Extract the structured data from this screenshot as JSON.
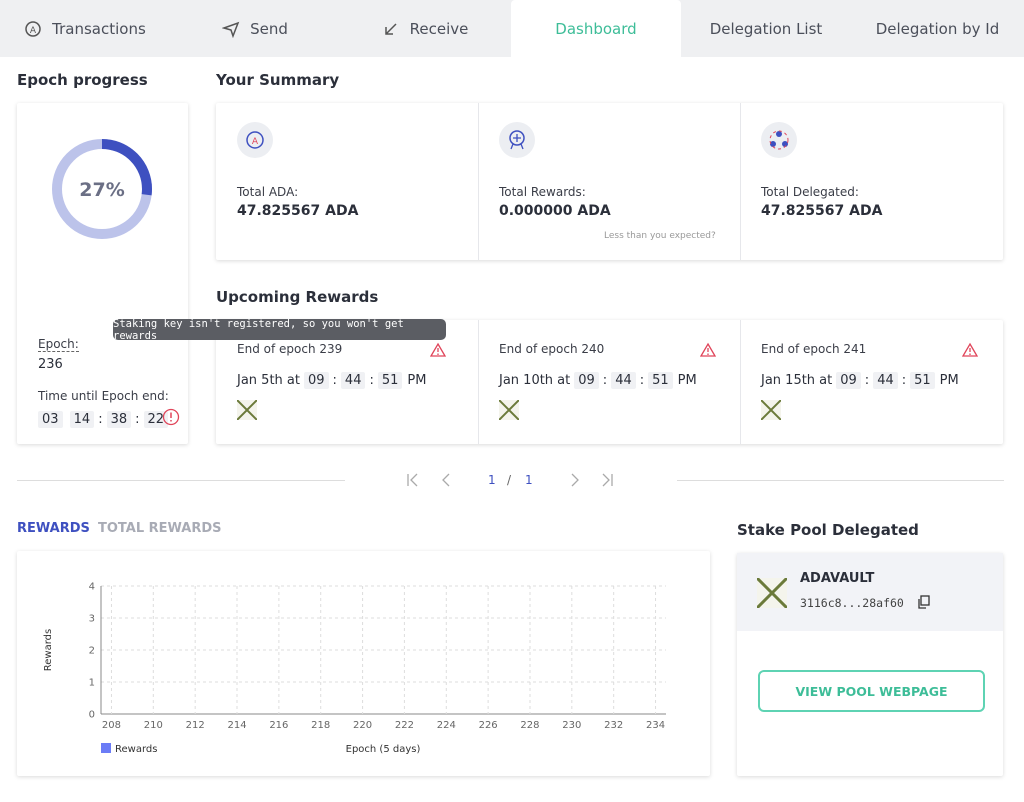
{
  "tabs": [
    "Transactions",
    "Send",
    "Receive",
    "Dashboard",
    "Delegation List",
    "Delegation by Id"
  ],
  "epoch_progress": {
    "title": "Epoch progress",
    "percent": 27,
    "percent_label": "27%",
    "epoch_label": "Epoch:",
    "epoch": "236",
    "time_label": "Time until Epoch end:",
    "time": [
      "03",
      "14",
      "38",
      "22"
    ],
    "time_separator": ":"
  },
  "tooltip": "Staking key isn't registered, so you won't get rewards",
  "summary": {
    "title": "Your Summary",
    "items": [
      {
        "label": "Total ADA:",
        "value": "47.825567 ADA"
      },
      {
        "label": "Total Rewards:",
        "value": "0.000000 ADA"
      },
      {
        "label": "Total Delegated:",
        "value": "47.825567 ADA"
      }
    ],
    "note": "Less than you expected?"
  },
  "upcoming": {
    "title": "Upcoming Rewards",
    "items": [
      {
        "epoch": "End of epoch 239",
        "date": "Jan 5th at",
        "time": [
          "09",
          "44",
          "51"
        ],
        "period": "PM"
      },
      {
        "epoch": "End of epoch 240",
        "date": "Jan 10th at",
        "time": [
          "09",
          "44",
          "51"
        ],
        "period": "PM"
      },
      {
        "epoch": "End of epoch 241",
        "date": "Jan 15th at",
        "time": [
          "09",
          "44",
          "51"
        ],
        "period": "PM"
      }
    ],
    "time_separator": ":"
  },
  "pagination": {
    "current": "1",
    "separator": "/",
    "total": "1"
  },
  "rewards_chart": {
    "tabs": [
      "REWARDS",
      "TOTAL REWARDS"
    ],
    "ylabel": "Rewards",
    "xlabel": "Epoch (5 days)",
    "legend": "Rewards",
    "color": "#6b7cf6",
    "ylim": [
      0,
      4
    ],
    "yticks": [
      0,
      1,
      2,
      3,
      4
    ],
    "xlim": [
      207.5,
      234.5
    ],
    "xticks": [
      208,
      210,
      212,
      214,
      216,
      218,
      220,
      222,
      224,
      226,
      228,
      230,
      232,
      234
    ]
  },
  "pool": {
    "title": "Stake Pool Delegated",
    "name": "ADAVAULT",
    "id": "3116c8...28af60",
    "button": "VIEW POOL WEBPAGE"
  }
}
